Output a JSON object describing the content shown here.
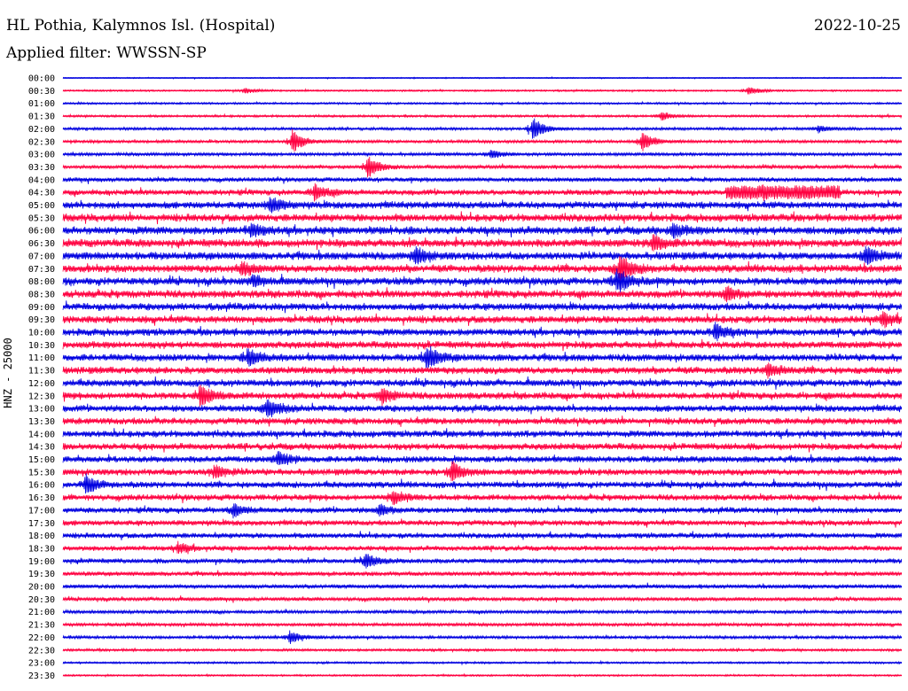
{
  "header": {
    "station": "HL Pothia, Kalymnos Isl. (Hospital)",
    "date": "2022-10-25",
    "filter": "Applied filter: WWSSN-SP"
  },
  "axis": {
    "ylabel": "HNZ - 25000"
  },
  "colors": {
    "blue": "#0000e0",
    "red": "#ff0040"
  },
  "chart_data": {
    "type": "line",
    "title": "HL Pothia, Kalymnos Isl. (Hospital)",
    "ylabel": "HNZ - 25000",
    "rows": [
      "00:00",
      "00:30",
      "01:00",
      "01:30",
      "02:00",
      "02:30",
      "03:00",
      "03:30",
      "04:00",
      "04:30",
      "05:00",
      "05:30",
      "06:00",
      "06:30",
      "07:00",
      "07:30",
      "08:00",
      "08:30",
      "09:00",
      "09:30",
      "10:00",
      "10:30",
      "11:00",
      "11:30",
      "12:00",
      "12:30",
      "13:00",
      "13:30",
      "14:00",
      "14:30",
      "15:00",
      "15:30",
      "16:00",
      "16:30",
      "17:00",
      "17:30",
      "18:00",
      "18:30",
      "19:00",
      "19:30",
      "20:00",
      "20:30",
      "21:00",
      "21:30",
      "22:00",
      "22:30",
      "23:00",
      "23:30"
    ],
    "trace_colors": [
      "blue",
      "red"
    ],
    "noise_levels": [
      0.5,
      0.8,
      0.9,
      1.0,
      1.2,
      1.3,
      1.4,
      1.6,
      2.0,
      2.6,
      3.2,
      3.4,
      3.6,
      3.6,
      3.5,
      3.5,
      3.4,
      3.4,
      3.3,
      3.3,
      3.2,
      3.2,
      3.2,
      3.2,
      3.1,
      3.1,
      3.0,
      3.0,
      3.0,
      3.0,
      2.9,
      2.9,
      2.8,
      2.7,
      2.6,
      2.5,
      2.4,
      2.3,
      2.2,
      2.0,
      1.8,
      1.7,
      1.5,
      1.4,
      1.3,
      1.1,
      0.9,
      0.8
    ],
    "events": [
      {
        "row": "00:30",
        "t": 6.5,
        "amp": 3
      },
      {
        "row": "00:30",
        "t": 24.5,
        "amp": 5
      },
      {
        "row": "01:30",
        "t": 21.4,
        "amp": 5
      },
      {
        "row": "02:00",
        "t": 16.8,
        "amp": 14
      },
      {
        "row": "02:00",
        "t": 27.0,
        "amp": 4
      },
      {
        "row": "02:30",
        "t": 8.2,
        "amp": 13
      },
      {
        "row": "02:30",
        "t": 20.7,
        "amp": 11
      },
      {
        "row": "03:00",
        "t": 15.3,
        "amp": 5
      },
      {
        "row": "03:30",
        "t": 10.9,
        "amp": 13
      },
      {
        "row": "04:30",
        "t": 9.0,
        "amp": 9
      },
      {
        "row": "04:30",
        "t": 25.0,
        "amp": 8
      },
      {
        "row": "05:00",
        "t": 7.4,
        "amp": 8
      },
      {
        "row": "06:00",
        "t": 6.7,
        "amp": 7
      },
      {
        "row": "06:00",
        "t": 21.8,
        "amp": 7
      },
      {
        "row": "06:30",
        "t": 21.1,
        "amp": 9
      },
      {
        "row": "07:00",
        "t": 12.6,
        "amp": 9
      },
      {
        "row": "07:00",
        "t": 28.7,
        "amp": 10
      },
      {
        "row": "07:30",
        "t": 6.4,
        "amp": 7
      },
      {
        "row": "07:30",
        "t": 19.9,
        "amp": 16
      },
      {
        "row": "08:00",
        "t": 19.8,
        "amp": 14
      },
      {
        "row": "08:00",
        "t": 6.8,
        "amp": 6
      },
      {
        "row": "08:30",
        "t": 23.7,
        "amp": 8
      },
      {
        "row": "09:30",
        "t": 29.3,
        "amp": 8
      },
      {
        "row": "10:00",
        "t": 23.3,
        "amp": 9
      },
      {
        "row": "11:00",
        "t": 6.6,
        "amp": 10
      },
      {
        "row": "11:00",
        "t": 13.0,
        "amp": 14
      },
      {
        "row": "11:30",
        "t": 25.2,
        "amp": 8
      },
      {
        "row": "12:30",
        "t": 4.9,
        "amp": 12
      },
      {
        "row": "12:30",
        "t": 11.4,
        "amp": 8
      },
      {
        "row": "13:00",
        "t": 7.3,
        "amp": 12
      },
      {
        "row": "15:00",
        "t": 7.7,
        "amp": 8
      },
      {
        "row": "15:30",
        "t": 13.9,
        "amp": 11
      },
      {
        "row": "15:30",
        "t": 5.4,
        "amp": 7
      },
      {
        "row": "16:00",
        "t": 0.8,
        "amp": 10
      },
      {
        "row": "16:30",
        "t": 11.8,
        "amp": 8
      },
      {
        "row": "17:00",
        "t": 6.1,
        "amp": 6
      },
      {
        "row": "17:00",
        "t": 11.3,
        "amp": 6
      },
      {
        "row": "18:30",
        "t": 4.1,
        "amp": 6
      },
      {
        "row": "19:00",
        "t": 10.8,
        "amp": 9
      },
      {
        "row": "22:00",
        "t": 8.1,
        "amp": 8
      }
    ],
    "saturated_segments": [
      {
        "row": "04:30",
        "t_start": 23.7,
        "t_end": 27.8,
        "amp": 8
      }
    ],
    "xlim": [
      0,
      30
    ],
    "grid": false
  }
}
